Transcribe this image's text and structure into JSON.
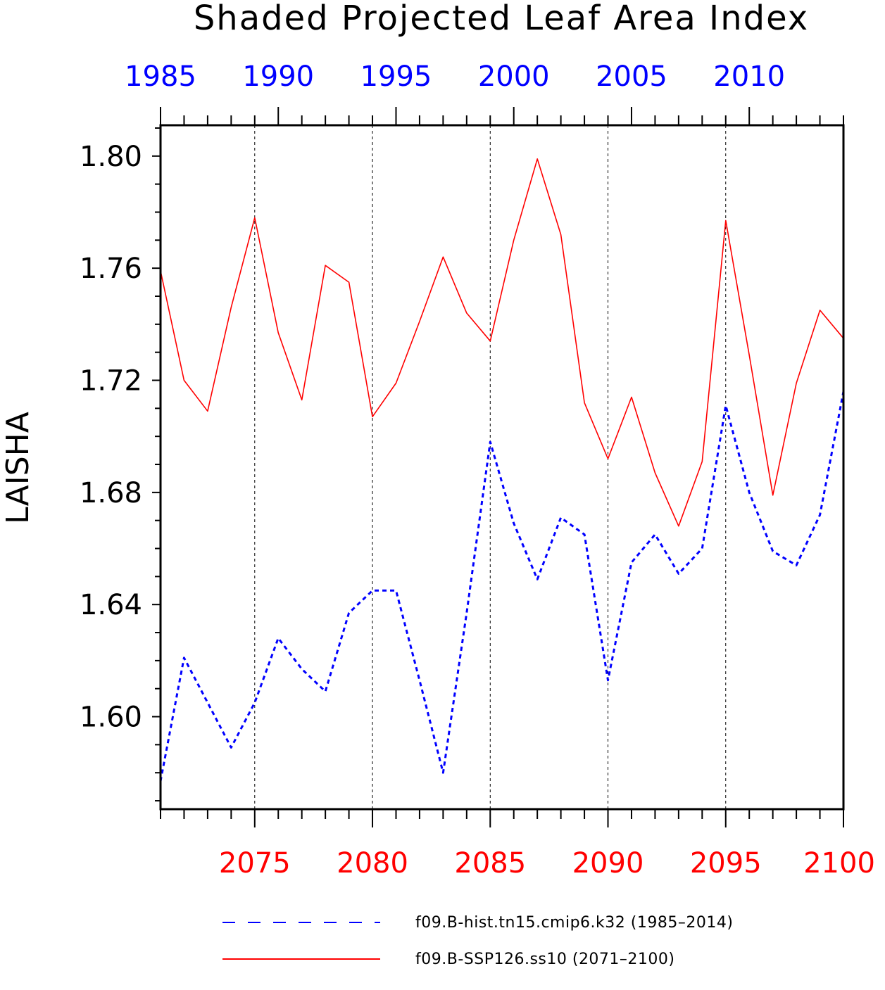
{
  "chart_data": {
    "type": "line",
    "title": "Shaded Projected Leaf Area Index",
    "ylabel": "LAISHA",
    "ylim": [
      1.567,
      1.811
    ],
    "yticks": [
      1.6,
      1.64,
      1.68,
      1.72,
      1.76,
      1.8
    ],
    "ytick_labels": [
      "1.60",
      "1.64",
      "1.68",
      "1.72",
      "1.76",
      "1.80"
    ],
    "top_axis": {
      "range": [
        1985,
        2014
      ],
      "ticks": [
        1985,
        1990,
        1995,
        2000,
        2005,
        2010
      ],
      "labels": [
        "1985",
        "1990",
        "1995",
        "2000",
        "2005",
        "2010"
      ],
      "color": "#0000ff"
    },
    "bottom_axis": {
      "range": [
        2071,
        2100
      ],
      "ticks": [
        2075,
        2080,
        2085,
        2090,
        2095,
        2100
      ],
      "labels": [
        "2075",
        "2080",
        "2085",
        "2090",
        "2095",
        "2100"
      ],
      "color": "#ff0000"
    },
    "grid": "vertical dashed at major ticks",
    "series": [
      {
        "name": "f09.B-hist.tn15.cmip6.k32 (1985-2014)",
        "axis": "top",
        "color": "#0000ff",
        "style": "dashed",
        "x": [
          1985,
          1986,
          1987,
          1988,
          1989,
          1990,
          1991,
          1992,
          1993,
          1994,
          1995,
          1996,
          1997,
          1998,
          1999,
          2000,
          2001,
          2002,
          2003,
          2004,
          2005,
          2006,
          2007,
          2008,
          2009,
          2010,
          2011,
          2012,
          2013,
          2014
        ],
        "y": [
          1.577,
          1.621,
          1.605,
          1.589,
          1.605,
          1.628,
          1.617,
          1.609,
          1.637,
          1.645,
          1.645,
          1.613,
          1.58,
          1.637,
          1.698,
          1.669,
          1.649,
          1.671,
          1.665,
          1.613,
          1.655,
          1.665,
          1.651,
          1.66,
          1.711,
          1.68,
          1.659,
          1.654,
          1.672,
          1.716
        ]
      },
      {
        "name": "f09.B-SSP126.ss10 (2071-2100)",
        "axis": "bottom",
        "color": "#ff0000",
        "style": "solid",
        "x": [
          2071,
          2072,
          2073,
          2074,
          2075,
          2076,
          2077,
          2078,
          2079,
          2080,
          2081,
          2082,
          2083,
          2084,
          2085,
          2086,
          2087,
          2088,
          2089,
          2090,
          2091,
          2092,
          2093,
          2094,
          2095,
          2096,
          2097,
          2098,
          2099,
          2100
        ],
        "y": [
          1.759,
          1.72,
          1.709,
          1.746,
          1.778,
          1.737,
          1.713,
          1.761,
          1.755,
          1.707,
          1.719,
          1.741,
          1.764,
          1.744,
          1.734,
          1.77,
          1.799,
          1.772,
          1.712,
          1.692,
          1.714,
          1.687,
          1.668,
          1.691,
          1.777,
          1.729,
          1.679,
          1.719,
          1.745,
          1.735
        ]
      }
    ],
    "legend": {
      "placement": "bottom",
      "entries": [
        "f09.B-hist.tn15.cmip6.k32 (1985–2014)",
        "f09.B-SSP126.ss10 (2071–2100)"
      ]
    }
  }
}
